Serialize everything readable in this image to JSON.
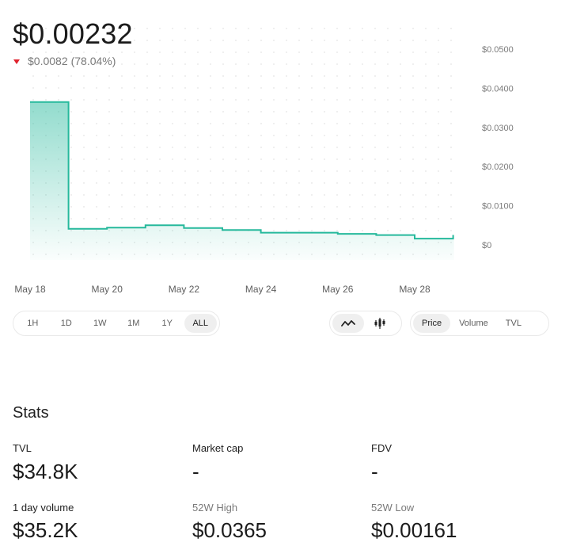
{
  "header": {
    "price": "$0.00232",
    "change_amount": "$0.0082",
    "change_percent": "(78.04%)",
    "change_direction": "down",
    "down_color": "#e0232e"
  },
  "chart_data": {
    "type": "area",
    "line_color": "#26b99c",
    "grid": "dotted",
    "x_tick_labels": [
      "May 18",
      "May 20",
      "May 22",
      "May 24",
      "May 26",
      "May 28"
    ],
    "y_tick_labels": [
      "$0.0500",
      "$0.0400",
      "$0.0300",
      "$0.0200",
      "$0.0100",
      "$0"
    ],
    "ylim": [
      0,
      0.05
    ],
    "series": [
      {
        "points": [
          {
            "x": "2024-05-18",
            "y": 0.0365
          },
          {
            "x": "2024-05-19",
            "y": 0.0041
          },
          {
            "x": "2024-05-20",
            "y": 0.0044
          },
          {
            "x": "2024-05-21",
            "y": 0.005
          },
          {
            "x": "2024-05-22",
            "y": 0.0043
          },
          {
            "x": "2024-05-23",
            "y": 0.0038
          },
          {
            "x": "2024-05-24",
            "y": 0.0031
          },
          {
            "x": "2024-05-25",
            "y": 0.0031
          },
          {
            "x": "2024-05-26",
            "y": 0.0028
          },
          {
            "x": "2024-05-27",
            "y": 0.0025
          },
          {
            "x": "2024-05-28",
            "y": 0.0016
          },
          {
            "x": "2024-05-29",
            "y": 0.00232
          }
        ]
      }
    ]
  },
  "timeframes": [
    "1H",
    "1D",
    "1W",
    "1M",
    "1Y",
    "ALL"
  ],
  "active_timeframe": "ALL",
  "chart_types": [
    {
      "icon": "line-chart-icon",
      "active": true
    },
    {
      "icon": "candlestick-chart-icon",
      "active": false
    }
  ],
  "metrics": [
    "Price",
    "Volume",
    "TVL"
  ],
  "active_metric": "Price",
  "stats": {
    "title": "Stats",
    "tvl_label": "TVL",
    "tvl_value": "$34.8K",
    "market_cap_label": "Market cap",
    "market_cap_value": "-",
    "fdv_label": "FDV",
    "fdv_value": "-",
    "volume_label": "1 day volume",
    "volume_value": "$35.2K",
    "high_label": "52W High",
    "high_value": "$0.0365",
    "low_label": "52W Low",
    "low_value": "$0.00161"
  }
}
